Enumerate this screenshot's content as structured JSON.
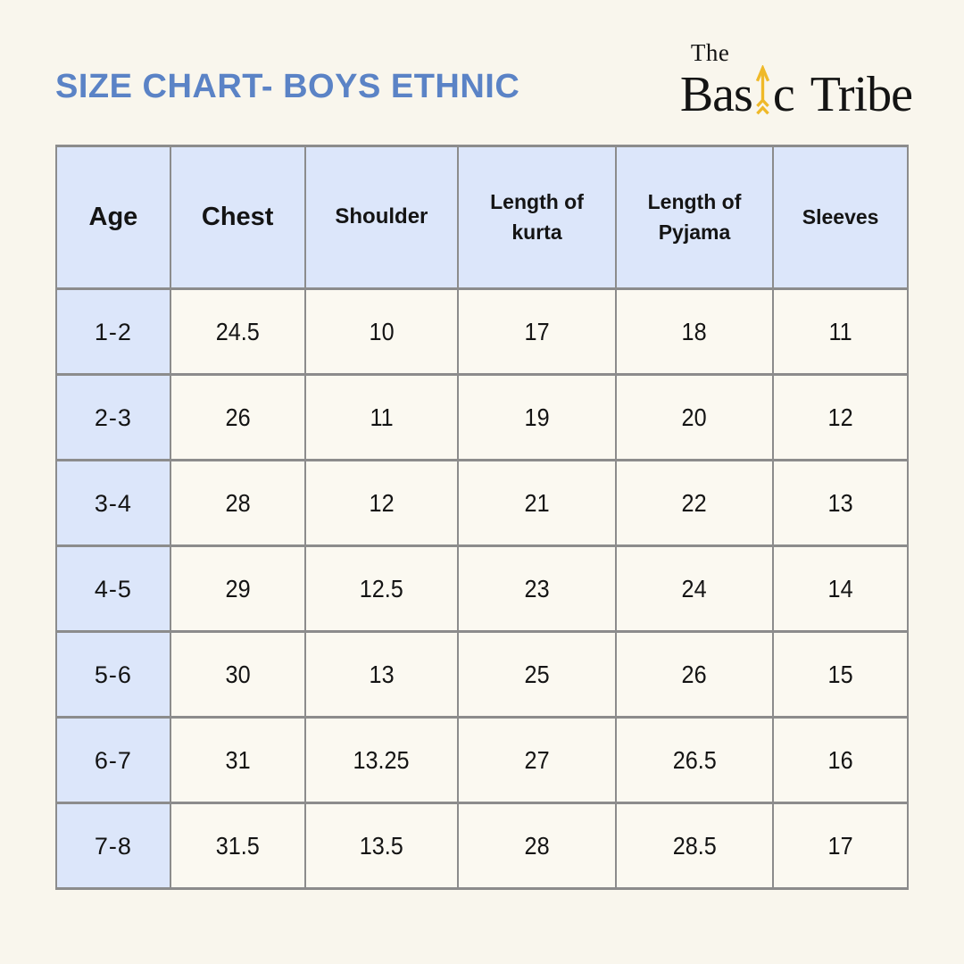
{
  "colors": {
    "page_bg": "#F9F6ED",
    "cell_bg": "#FBF9F1",
    "header_bg": "#DCE6FA",
    "border": "#8C8C8C",
    "title": "#5B83C6",
    "text": "#141414",
    "arrow": "#EFB929"
  },
  "logo": {
    "the": "The",
    "basic_before": "Bas",
    "basic_after": "c",
    "tribe": "Tribe",
    "arrow_icon": "up-arrow-icon"
  },
  "chart_data": {
    "type": "table",
    "title": "SIZE CHART- BOYS ETHNIC",
    "columns": [
      "Age",
      "Chest",
      "Shoulder",
      "Length of kurta",
      "Length of Pyjama",
      "Sleeves"
    ],
    "rows": [
      [
        "1-2",
        "24.5",
        "10",
        "17",
        "18",
        "11"
      ],
      [
        "2-3",
        "26",
        "11",
        "19",
        "20",
        "12"
      ],
      [
        "3-4",
        "28",
        "12",
        "21",
        "22",
        "13"
      ],
      [
        "4-5",
        "29",
        "12.5",
        "23",
        "24",
        "14"
      ],
      [
        "5-6",
        "30",
        "13",
        "25",
        "26",
        "15"
      ],
      [
        "6-7",
        "31",
        "13.25",
        "27",
        "26.5",
        "16"
      ],
      [
        "7-8",
        "31.5",
        "13.5",
        "28",
        "28.5",
        "17"
      ]
    ],
    "layout": {
      "grid": true,
      "header_row_tinted": true,
      "first_column_tinted": true
    }
  }
}
